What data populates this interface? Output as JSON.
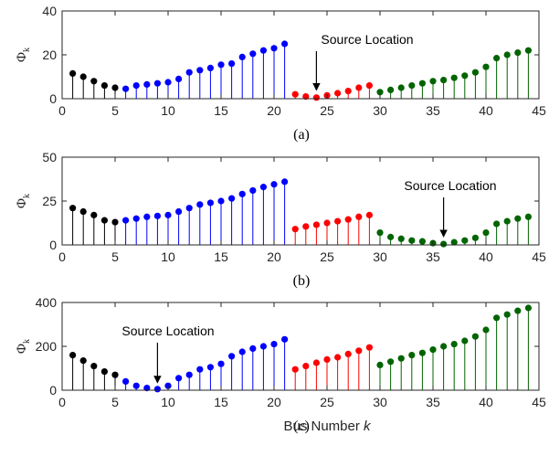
{
  "xlabel": "Bus Number",
  "xlabel_var": "k",
  "ylabel_sym": "Φ",
  "ylabel_sub": "k",
  "group_colors": [
    "#000000",
    "#0000ff",
    "#ff0000",
    "#006400"
  ],
  "chart_data": [
    {
      "type": "stem",
      "caption": "(a)",
      "xlim": [
        0,
        45
      ],
      "ylim": [
        0,
        40
      ],
      "xticks": [
        0,
        5,
        10,
        15,
        20,
        25,
        30,
        35,
        40,
        45
      ],
      "yticks": [
        0,
        20,
        40
      ],
      "annotation": {
        "text": "Source Location",
        "x": 24,
        "y": 1
      },
      "groups": [
        {
          "x": [
            1,
            2,
            3,
            4,
            5
          ],
          "y": [
            11.5,
            10,
            8,
            6,
            5
          ]
        },
        {
          "x": [
            6,
            7,
            8,
            9,
            10,
            11,
            12,
            13,
            14,
            15,
            16,
            17,
            18,
            19,
            20,
            21
          ],
          "y": [
            4.5,
            6,
            6.5,
            7,
            7.5,
            9,
            12,
            13,
            14,
            15.5,
            16,
            19,
            20.5,
            22,
            23,
            25
          ]
        },
        {
          "x": [
            22,
            23,
            24,
            25,
            26,
            27,
            28,
            29
          ],
          "y": [
            2,
            1,
            0.5,
            1.5,
            2.5,
            3.5,
            5,
            6
          ]
        },
        {
          "x": [
            30,
            31,
            32,
            33,
            34,
            35,
            36,
            37,
            38,
            39,
            40,
            41,
            42,
            43,
            44
          ],
          "y": [
            3,
            4,
            5,
            6,
            7,
            8,
            8.5,
            9.5,
            10.5,
            12,
            14.5,
            18.5,
            20,
            21,
            22
          ]
        }
      ]
    },
    {
      "type": "stem",
      "caption": "(b)",
      "xlim": [
        0,
        45
      ],
      "ylim": [
        0,
        50
      ],
      "xticks": [
        0,
        5,
        10,
        15,
        20,
        25,
        30,
        35,
        40,
        45
      ],
      "yticks": [
        0,
        25,
        50
      ],
      "annotation": {
        "text": "Source Location",
        "x": 36,
        "y": 1
      },
      "groups": [
        {
          "x": [
            1,
            2,
            3,
            4,
            5
          ],
          "y": [
            21,
            19,
            17,
            14,
            13
          ]
        },
        {
          "x": [
            6,
            7,
            8,
            9,
            10,
            11,
            12,
            13,
            14,
            15,
            16,
            17,
            18,
            19,
            20,
            21
          ],
          "y": [
            14,
            15,
            16,
            16.5,
            17,
            19,
            21,
            23,
            24,
            25,
            26.5,
            29,
            31,
            33,
            34.5,
            36
          ]
        },
        {
          "x": [
            22,
            23,
            24,
            25,
            26,
            27,
            28,
            29
          ],
          "y": [
            9,
            10.5,
            11.5,
            12.5,
            13.5,
            14.5,
            16,
            17
          ]
        },
        {
          "x": [
            30,
            31,
            32,
            33,
            34,
            35,
            36,
            37,
            38,
            39,
            40,
            41,
            42,
            43,
            44
          ],
          "y": [
            7,
            4.5,
            3.5,
            2.5,
            2,
            1,
            0.5,
            1.5,
            2.5,
            4,
            7,
            12,
            13.5,
            15,
            16
          ]
        }
      ]
    },
    {
      "type": "stem",
      "caption": "(c)",
      "xlim": [
        0,
        45
      ],
      "ylim": [
        0,
        400
      ],
      "xticks": [
        0,
        5,
        10,
        15,
        20,
        25,
        30,
        35,
        40,
        45
      ],
      "yticks": [
        0,
        200,
        400
      ],
      "annotation": {
        "text": "Source Location",
        "x": 9,
        "y": 5
      },
      "groups": [
        {
          "x": [
            1,
            2,
            3,
            4,
            5
          ],
          "y": [
            160,
            135,
            110,
            85,
            70
          ]
        },
        {
          "x": [
            6,
            7,
            8,
            9,
            10,
            11,
            12,
            13,
            14,
            15,
            16,
            17,
            18,
            19,
            20,
            21
          ],
          "y": [
            40,
            20,
            10,
            5,
            20,
            55,
            70,
            95,
            105,
            120,
            155,
            175,
            190,
            200,
            210,
            232
          ]
        },
        {
          "x": [
            22,
            23,
            24,
            25,
            26,
            27,
            28,
            29
          ],
          "y": [
            95,
            110,
            125,
            140,
            150,
            165,
            180,
            195
          ]
        },
        {
          "x": [
            30,
            31,
            32,
            33,
            34,
            35,
            36,
            37,
            38,
            39,
            40,
            41,
            42,
            43,
            44
          ],
          "y": [
            115,
            130,
            145,
            160,
            170,
            185,
            200,
            210,
            225,
            245,
            275,
            330,
            345,
            362,
            375
          ]
        }
      ]
    }
  ]
}
